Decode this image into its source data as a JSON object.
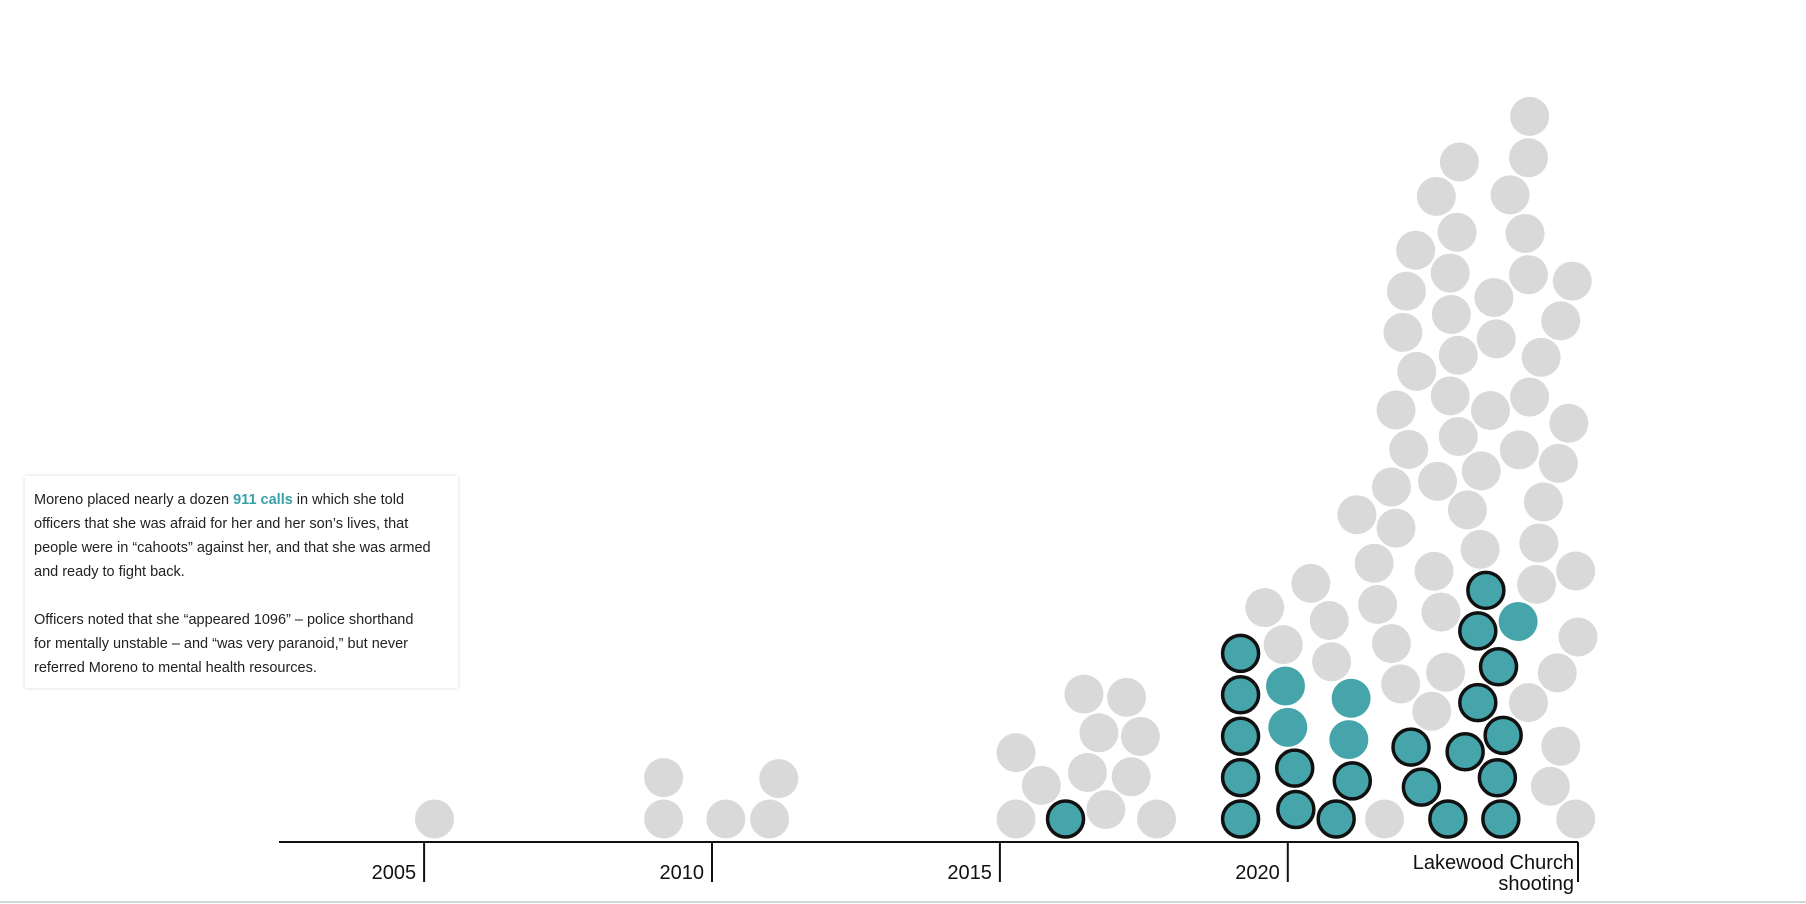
{
  "chart_data": {
    "type": "beeswarm",
    "xlim": [
      2002.48,
      2025.04
    ],
    "xticks": [
      2005,
      2010,
      2015,
      2020,
      {
        "value": 2025.04,
        "label": "Lakewood Church shooting"
      }
    ],
    "series": [
      {
        "color": "#45a5ab",
        "stroke": "#111111",
        "values": [
          2019.18,
          2019.18,
          2019.18,
          2019.18,
          2019.18,
          2016.14,
          2020.84,
          2020.14,
          2020.12,
          2021.12,
          2022.78,
          2023.7,
          2023.64,
          2022.32,
          2023.08,
          2022.14,
          2023.74,
          2023.3,
          2023.66,
          2023.3,
          2023.44
        ]
      },
      {
        "color": "#45a5ab",
        "values": [
          2020.0,
          2019.96,
          2021.06,
          2021.1,
          2024.0
        ]
      },
      {
        "color": "#d9d9d9",
        "values": [
          2005.18,
          2009.16,
          2009.16,
          2010.24,
          2011.0,
          2011.16,
          2015.28,
          2015.72,
          2015.28,
          2016.84,
          2016.52,
          2016.72,
          2016.46,
          2017.72,
          2017.28,
          2017.44,
          2017.2,
          2021.68,
          2022.5,
          2023.34,
          2024.18,
          2025.0,
          2021.96,
          2024.56,
          2023.12,
          2022.74,
          2021.8,
          2021.56,
          2020.76,
          2024.74,
          2024.32,
          2023.36,
          2024.68,
          2020.72,
          2019.92,
          2021.5,
          2022.66,
          2019.6,
          2020.4,
          2021.88,
          2025.04,
          2024.36,
          2021.2,
          2022.96,
          2025.0,
          2024.44,
          2022.54,
          2023.52,
          2021.8,
          2024.7,
          2022.82,
          2022.1,
          2024.88,
          2024.2,
          2022.96,
          2024.4,
          2023.62,
          2022.24,
          2022.84,
          2024.02,
          2024.74,
          2022.0,
          2023.58,
          2024.18,
          2022.6,
          2021.88,
          2022.82,
          2022.06,
          2022.94,
          2022.22,
          2024.12,
          2022.58,
          2023.86,
          2022.98,
          2024.18,
          2024.2,
          2024.94
        ]
      }
    ],
    "annotation": {
      "paragraphs": [
        [
          "Moreno placed nearly a dozen ",
          "911 calls",
          " in which she told officers that she was afraid for her and her son’s lives, that people were in “cahoots” against her, and that she was armed and ready to fight back."
        ],
        [
          "Officers noted that she “appeared 1096” – police shorthand for mentally unstable – and “was very paranoid,” but never referred Moreno to mental health resources."
        ]
      ]
    }
  }
}
